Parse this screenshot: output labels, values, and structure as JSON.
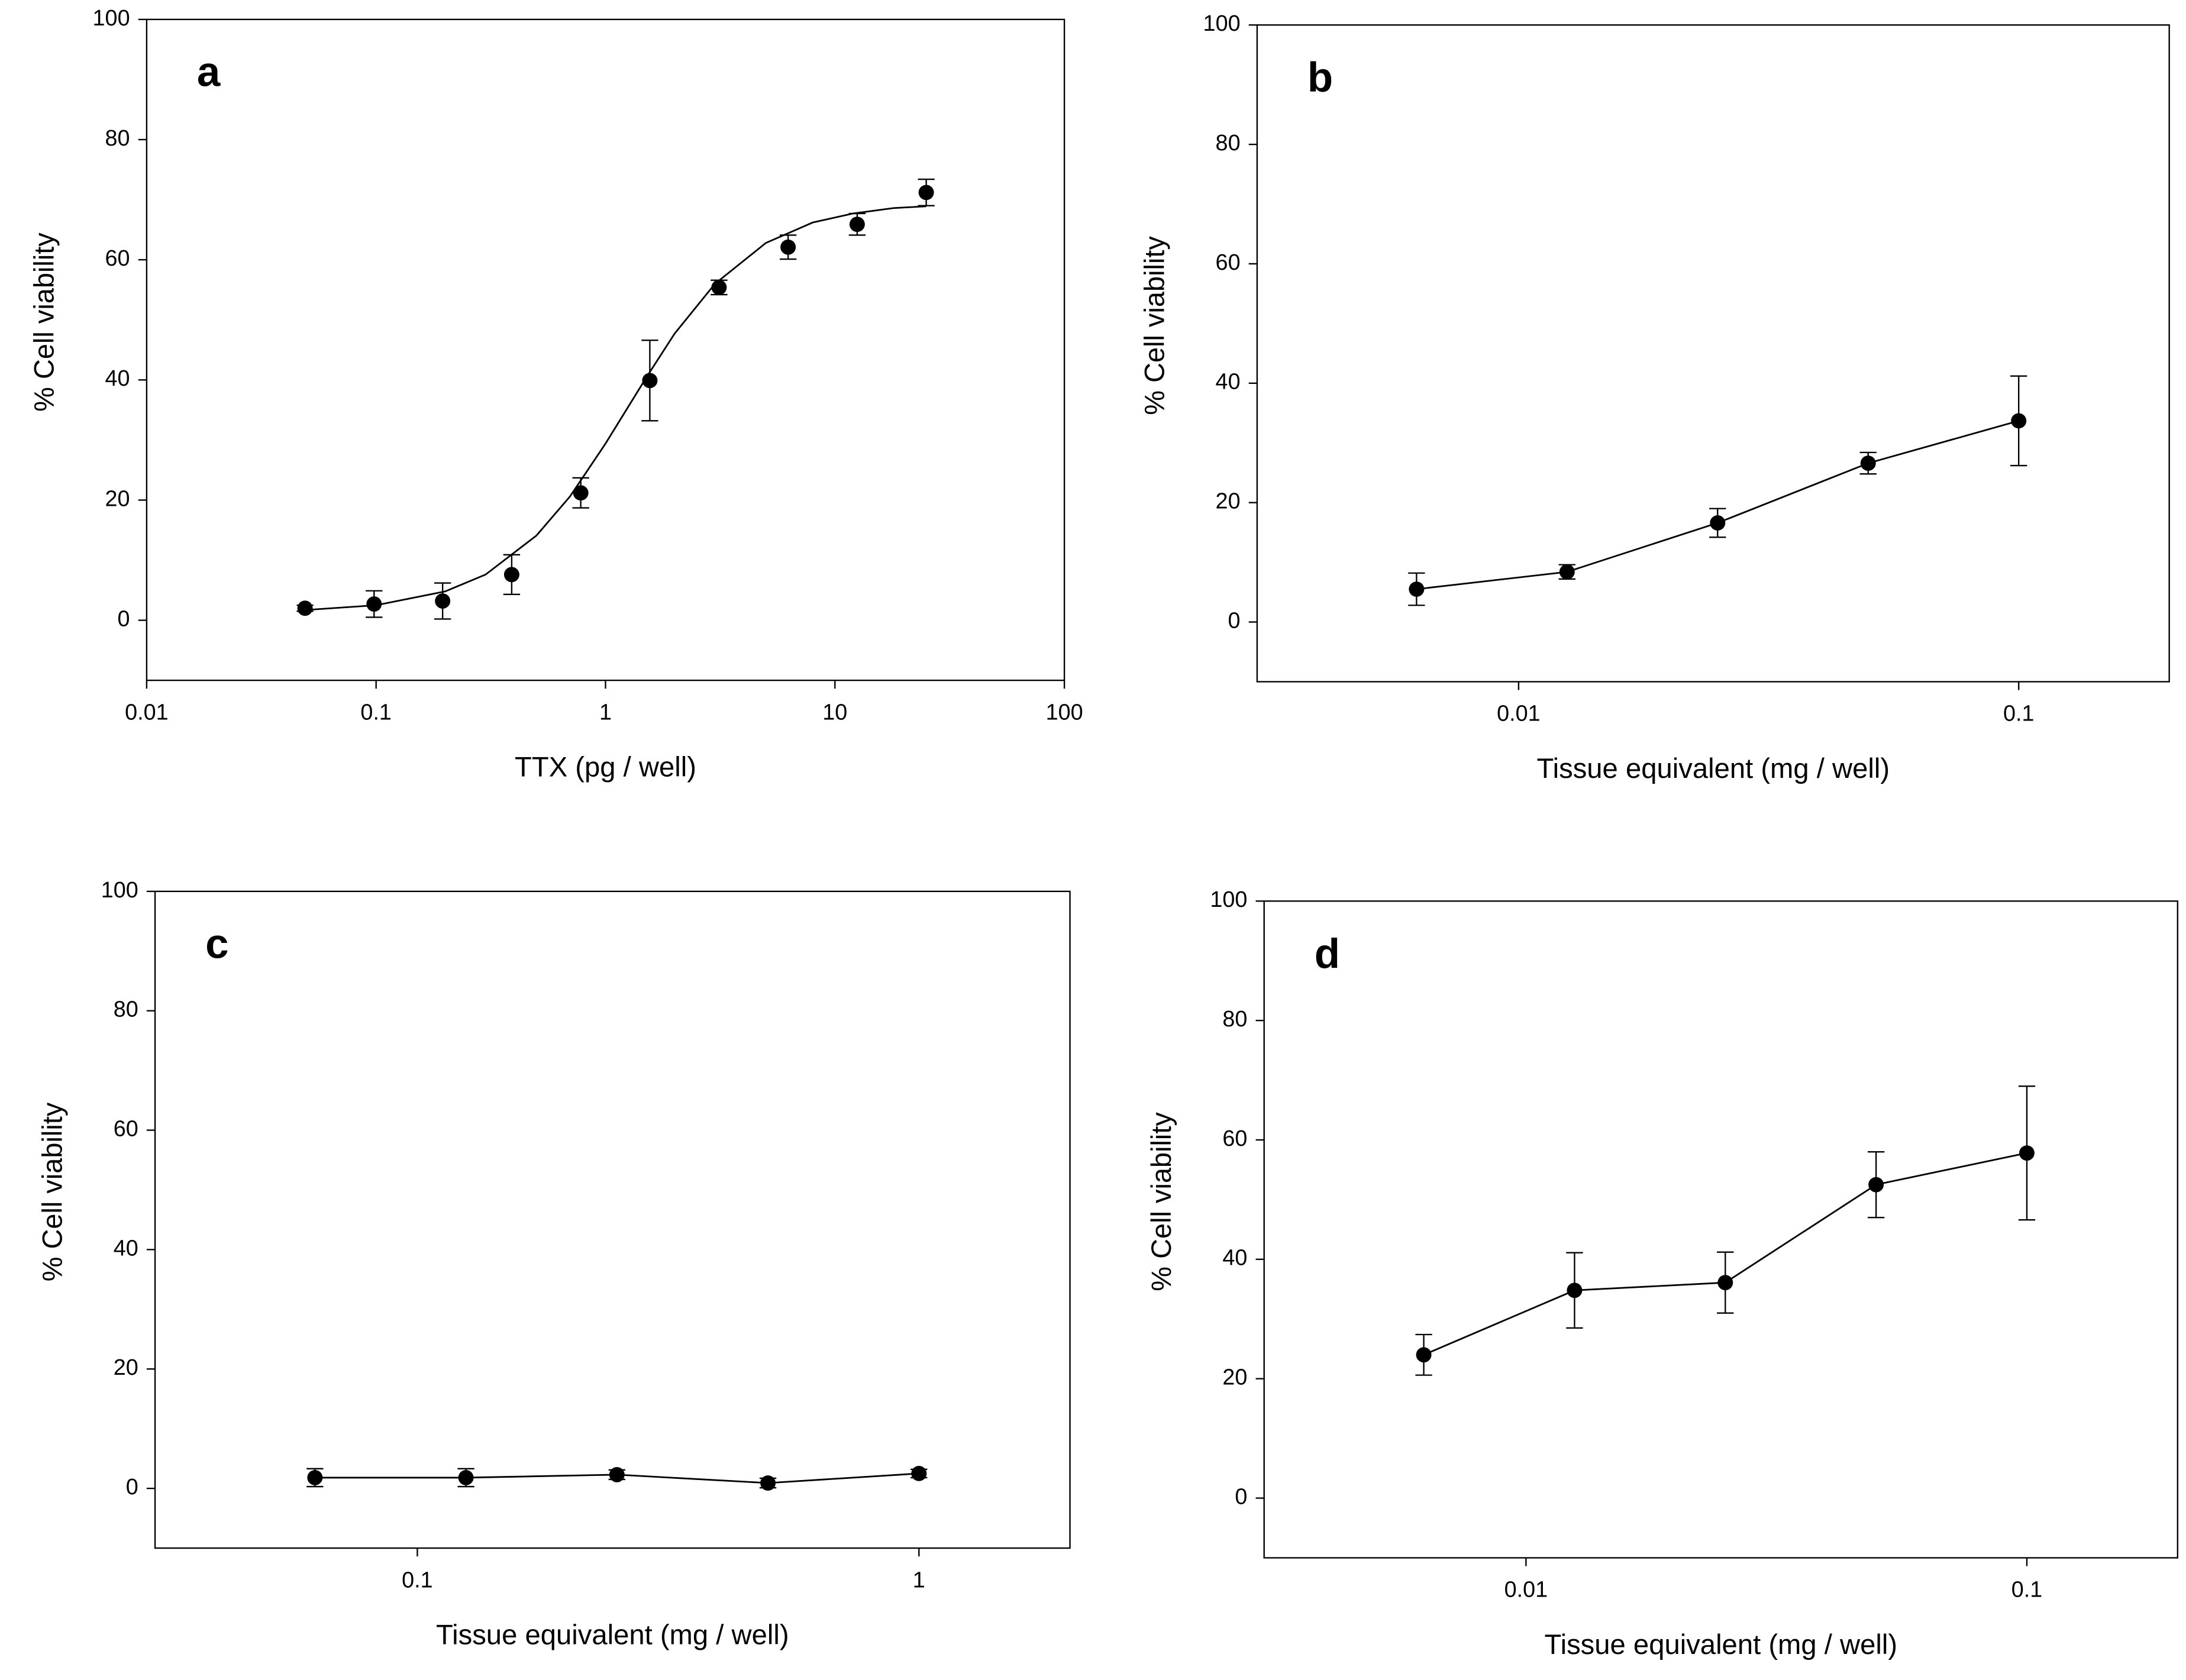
{
  "chart_data": [
    {
      "type": "scatter",
      "label": "a",
      "xlabel": "TTX (pg / well)",
      "ylabel": "% Cell viability",
      "xscale": "log",
      "xlim": [
        0.01,
        100
      ],
      "xticks": [
        0.01,
        0.1,
        1,
        10,
        100
      ],
      "ylim": [
        -10,
        100
      ],
      "yticks": [
        0,
        20,
        40,
        60,
        80,
        100
      ],
      "color": "#000000",
      "x": [
        0.049,
        0.098,
        0.195,
        0.39,
        0.78,
        1.56,
        3.125,
        6.25,
        12.5,
        25
      ],
      "values": [
        2,
        2.7,
        3.2,
        7.6,
        21.2,
        39.9,
        55.4,
        62.1,
        65.9,
        71.2
      ],
      "errors": [
        0.5,
        2.2,
        3,
        3.3,
        2.5,
        6.7,
        1.2,
        2,
        1.8,
        2.2
      ],
      "fit": {
        "x": [
          0.049,
          0.1,
          0.2,
          0.3,
          0.5,
          0.7,
          1,
          1.5,
          2,
          3,
          5,
          8,
          12,
          18,
          25
        ],
        "values": [
          1.7,
          2.5,
          4.8,
          7.6,
          14.1,
          20.6,
          29.4,
          40.3,
          47.7,
          56.0,
          62.8,
          66.2,
          67.7,
          68.6,
          68.9
        ]
      }
    },
    {
      "type": "line",
      "label": "b",
      "xlabel": "Tissue equivalent (mg / well)",
      "ylabel": "% Cell viability",
      "xscale": "log",
      "xlim": [
        0.003,
        0.2
      ],
      "xticks": [
        0.01,
        0.1
      ],
      "ylim": [
        -10,
        100
      ],
      "yticks": [
        0,
        20,
        40,
        60,
        80,
        100
      ],
      "color": "#000000",
      "x": [
        0.00625,
        0.0125,
        0.025,
        0.05,
        0.1
      ],
      "values": [
        5.5,
        8.4,
        16.6,
        26.6,
        33.7
      ],
      "errors": [
        2.7,
        1.2,
        2.4,
        1.8,
        7.5
      ]
    },
    {
      "type": "line",
      "label": "c",
      "xlabel": "Tissue equivalent (mg / well)",
      "ylabel": "% Cell viability",
      "xscale": "log",
      "xlim": [
        0.03,
        2
      ],
      "xticks": [
        0.1,
        1
      ],
      "ylim": [
        -10,
        100
      ],
      "yticks": [
        0,
        20,
        40,
        60,
        80,
        100
      ],
      "color": "#000000",
      "x": [
        0.0625,
        0.125,
        0.25,
        0.5,
        1
      ],
      "values": [
        1.8,
        1.8,
        2.3,
        0.9,
        2.5
      ],
      "errors": [
        1.5,
        1.5,
        0.8,
        0.8,
        0.7
      ]
    },
    {
      "type": "line",
      "label": "d",
      "xlabel": "Tissue equivalent (mg / well)",
      "ylabel": "% Cell viability",
      "xscale": "log",
      "xlim": [
        0.003,
        0.2
      ],
      "xticks": [
        0.01,
        0.1
      ],
      "ylim": [
        -10,
        100
      ],
      "yticks": [
        0,
        20,
        40,
        60,
        80,
        100
      ],
      "color": "#000000",
      "x": [
        0.00625,
        0.0125,
        0.025,
        0.05,
        0.1
      ],
      "values": [
        24,
        34.8,
        36.1,
        52.5,
        57.8
      ],
      "errors": [
        3.4,
        6.3,
        5.1,
        5.5,
        11.2
      ]
    }
  ]
}
